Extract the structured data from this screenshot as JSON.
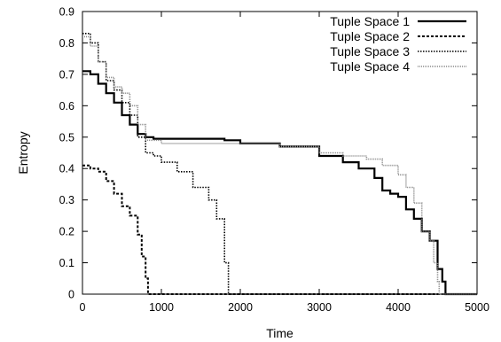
{
  "chart_data": {
    "type": "line",
    "title": "",
    "xlabel": "Time",
    "ylabel": "Entropy",
    "xlim": [
      0,
      5000
    ],
    "ylim": [
      0,
      0.9
    ],
    "x_ticks": [
      "0",
      "1000",
      "2000",
      "3000",
      "4000",
      "5000"
    ],
    "y_ticks": [
      "0",
      "0.1",
      "0.2",
      "0.3",
      "0.4",
      "0.5",
      "0.6",
      "0.7",
      "0.8",
      "0.9"
    ],
    "grid": false,
    "legend_position": "top-right",
    "series": [
      {
        "name": "Tuple Space 1",
        "style": "solid",
        "color": "#000000",
        "x": [
          0,
          100,
          200,
          300,
          400,
          500,
          600,
          700,
          800,
          900,
          1000,
          1200,
          1500,
          1800,
          2000,
          2500,
          3000,
          3300,
          3500,
          3700,
          3800,
          3900,
          4000,
          4100,
          4200,
          4300,
          4400,
          4500,
          4560,
          4600,
          5000
        ],
        "y": [
          0.71,
          0.7,
          0.67,
          0.64,
          0.61,
          0.57,
          0.54,
          0.51,
          0.5,
          0.495,
          0.495,
          0.495,
          0.495,
          0.49,
          0.48,
          0.47,
          0.44,
          0.42,
          0.4,
          0.37,
          0.33,
          0.32,
          0.31,
          0.27,
          0.24,
          0.2,
          0.17,
          0.08,
          0.04,
          0.0,
          0.0
        ]
      },
      {
        "name": "Tuple Space 2",
        "style": "dashed",
        "color": "#000000",
        "x": [
          0,
          100,
          200,
          300,
          400,
          500,
          600,
          700,
          750,
          800,
          830,
          900,
          5000
        ],
        "y": [
          0.41,
          0.4,
          0.39,
          0.36,
          0.32,
          0.28,
          0.25,
          0.19,
          0.12,
          0.05,
          0.0,
          0.0,
          0.0
        ],
        "note": ""
      },
      {
        "name": "Tuple Space 3",
        "style": "dotted",
        "color": "#000000",
        "x": [
          0,
          100,
          200,
          300,
          400,
          500,
          600,
          700,
          800,
          900,
          1000,
          1200,
          1400,
          1600,
          1700,
          1800,
          1850,
          1900,
          5000
        ],
        "y": [
          0.83,
          0.8,
          0.74,
          0.68,
          0.65,
          0.61,
          0.57,
          0.5,
          0.45,
          0.44,
          0.42,
          0.39,
          0.34,
          0.3,
          0.24,
          0.1,
          0.0,
          0.0,
          0.0
        ]
      },
      {
        "name": "Tuple Space 4",
        "style": "fine-dotted",
        "color": "#8a8a8a",
        "x": [
          0,
          100,
          200,
          300,
          400,
          500,
          600,
          700,
          800,
          1000,
          1500,
          2000,
          2500,
          3000,
          3300,
          3600,
          3800,
          4000,
          4100,
          4200,
          4300,
          4400,
          4450,
          4500,
          4520,
          5000
        ],
        "y": [
          0.82,
          0.79,
          0.74,
          0.69,
          0.66,
          0.64,
          0.6,
          0.54,
          0.49,
          0.48,
          0.48,
          0.48,
          0.47,
          0.45,
          0.44,
          0.43,
          0.41,
          0.38,
          0.34,
          0.29,
          0.2,
          0.17,
          0.1,
          0.04,
          0.0,
          0.0
        ]
      }
    ]
  }
}
